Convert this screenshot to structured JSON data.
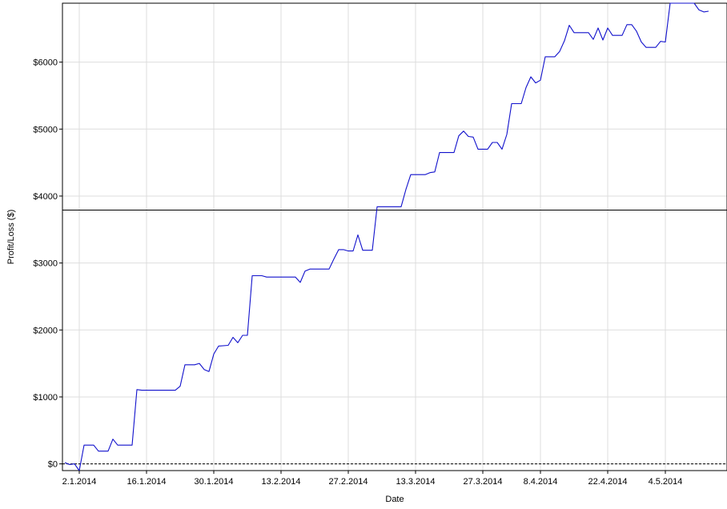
{
  "chart_data": {
    "type": "line",
    "xlabel": "Date",
    "ylabel": "Profit/Loss ($)",
    "ylim": [
      -100,
      6880
    ],
    "grid": true,
    "x_ticks": [
      "2.1.2014",
      "16.1.2014",
      "30.1.2014",
      "13.2.2014",
      "27.2.2014",
      "13.3.2014",
      "27.3.2014",
      "8.4.2014",
      "22.4.2014",
      "4.5.2014"
    ],
    "y_ticks": [
      {
        "value": 0,
        "label": "$0"
      },
      {
        "value": 1000,
        "label": "$1000"
      },
      {
        "value": 2000,
        "label": "$2000"
      },
      {
        "value": 3000,
        "label": "$3000"
      },
      {
        "value": 4000,
        "label": "$4000"
      },
      {
        "value": 5000,
        "label": "$5000"
      },
      {
        "value": 6000,
        "label": "$6000"
      }
    ],
    "reference_lines": [
      {
        "value": 3790,
        "style": "solid"
      },
      {
        "value": 0,
        "style": "dashed"
      }
    ],
    "series": [
      {
        "color": "#1111cc",
        "points": [
          [
            "2013-12-30",
            20
          ],
          [
            "2013-12-31",
            -10
          ],
          [
            "2014-01-01",
            0
          ],
          [
            "2014-01-02",
            -100
          ],
          [
            "2014-01-03",
            280
          ],
          [
            "2014-01-05",
            280
          ],
          [
            "2014-01-06",
            190
          ],
          [
            "2014-01-08",
            190
          ],
          [
            "2014-01-09",
            370
          ],
          [
            "2014-01-10",
            280
          ],
          [
            "2014-01-13",
            280
          ],
          [
            "2014-01-14",
            1110
          ],
          [
            "2014-01-15",
            1100
          ],
          [
            "2014-01-22",
            1100
          ],
          [
            "2014-01-23",
            1160
          ],
          [
            "2014-01-24",
            1480
          ],
          [
            "2014-01-26",
            1480
          ],
          [
            "2014-01-27",
            1500
          ],
          [
            "2014-01-28",
            1410
          ],
          [
            "2014-01-29",
            1380
          ],
          [
            "2014-01-30",
            1640
          ],
          [
            "2014-01-31",
            1760
          ],
          [
            "2014-02-02",
            1770
          ],
          [
            "2014-02-03",
            1890
          ],
          [
            "2014-02-04",
            1810
          ],
          [
            "2014-02-05",
            1920
          ],
          [
            "2014-02-06",
            1920
          ],
          [
            "2014-02-07",
            2810
          ],
          [
            "2014-02-09",
            2810
          ],
          [
            "2014-02-10",
            2790
          ],
          [
            "2014-02-16",
            2790
          ],
          [
            "2014-02-17",
            2710
          ],
          [
            "2014-02-18",
            2880
          ],
          [
            "2014-02-19",
            2910
          ],
          [
            "2014-02-23",
            2910
          ],
          [
            "2014-02-24",
            3060
          ],
          [
            "2014-02-25",
            3200
          ],
          [
            "2014-02-26",
            3200
          ],
          [
            "2014-02-27",
            3180
          ],
          [
            "2014-02-28",
            3180
          ],
          [
            "2014-03-01",
            3420
          ],
          [
            "2014-03-02",
            3190
          ],
          [
            "2014-03-04",
            3190
          ],
          [
            "2014-03-05",
            3840
          ],
          [
            "2014-03-10",
            3840
          ],
          [
            "2014-03-11",
            4100
          ],
          [
            "2014-03-12",
            4320
          ],
          [
            "2014-03-15",
            4320
          ],
          [
            "2014-03-16",
            4350
          ],
          [
            "2014-03-17",
            4360
          ],
          [
            "2014-03-18",
            4650
          ],
          [
            "2014-03-21",
            4650
          ],
          [
            "2014-03-22",
            4900
          ],
          [
            "2014-03-23",
            4970
          ],
          [
            "2014-03-24",
            4890
          ],
          [
            "2014-03-25",
            4880
          ],
          [
            "2014-03-26",
            4700
          ],
          [
            "2014-03-28",
            4700
          ],
          [
            "2014-03-29",
            4800
          ],
          [
            "2014-03-30",
            4800
          ],
          [
            "2014-03-31",
            4700
          ],
          [
            "2014-04-01",
            4920
          ],
          [
            "2014-04-02",
            5380
          ],
          [
            "2014-04-04",
            5380
          ],
          [
            "2014-04-05",
            5620
          ],
          [
            "2014-04-06",
            5780
          ],
          [
            "2014-04-07",
            5690
          ],
          [
            "2014-04-08",
            5730
          ],
          [
            "2014-04-09",
            6080
          ],
          [
            "2014-04-11",
            6080
          ],
          [
            "2014-04-12",
            6160
          ],
          [
            "2014-04-13",
            6320
          ],
          [
            "2014-04-14",
            6550
          ],
          [
            "2014-04-15",
            6440
          ],
          [
            "2014-04-18",
            6440
          ],
          [
            "2014-04-19",
            6340
          ],
          [
            "2014-04-20",
            6510
          ],
          [
            "2014-04-21",
            6330
          ],
          [
            "2014-04-22",
            6510
          ],
          [
            "2014-04-23",
            6400
          ],
          [
            "2014-04-25",
            6400
          ],
          [
            "2014-04-26",
            6560
          ],
          [
            "2014-04-27",
            6560
          ],
          [
            "2014-04-28",
            6460
          ],
          [
            "2014-04-29",
            6300
          ],
          [
            "2014-04-30",
            6220
          ],
          [
            "2014-05-02",
            6220
          ],
          [
            "2014-05-03",
            6310
          ],
          [
            "2014-05-04",
            6300
          ],
          [
            "2014-05-05",
            6880
          ],
          [
            "2014-05-09",
            6880
          ],
          [
            "2014-05-10",
            6880
          ],
          [
            "2014-05-11",
            6780
          ],
          [
            "2014-05-12",
            6750
          ],
          [
            "2014-05-13",
            6760
          ]
        ]
      }
    ]
  }
}
